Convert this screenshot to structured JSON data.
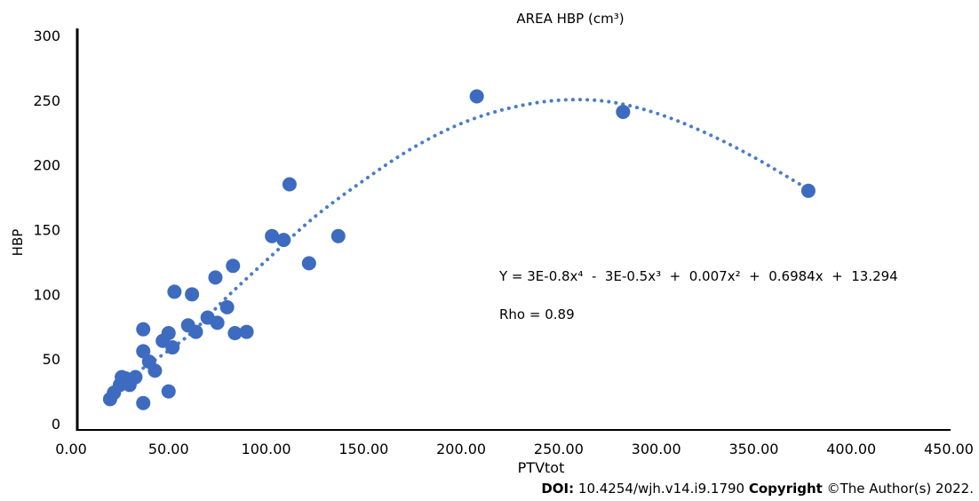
{
  "chart_data": {
    "type": "scatter",
    "title": "AREA HBP (cm³)",
    "xlabel": "PTVtot",
    "ylabel": "HBP",
    "xlim": [
      0,
      450
    ],
    "ylim": [
      0,
      300
    ],
    "x_tick_labels": [
      "0.00",
      "50.00",
      "100.00",
      "150.00",
      "200.00",
      "250.00",
      "300.00",
      "350.00",
      "400.00",
      "450.00"
    ],
    "y_tick_labels": [
      "0",
      "50",
      "100",
      "150",
      "200",
      "250",
      "300"
    ],
    "grid": false,
    "legend": "none",
    "points": [
      {
        "x": 20,
        "y": 19
      },
      {
        "x": 22,
        "y": 24
      },
      {
        "x": 25,
        "y": 30
      },
      {
        "x": 26,
        "y": 36
      },
      {
        "x": 28,
        "y": 35
      },
      {
        "x": 30,
        "y": 30
      },
      {
        "x": 33,
        "y": 36
      },
      {
        "x": 37,
        "y": 16
      },
      {
        "x": 37,
        "y": 56
      },
      {
        "x": 37,
        "y": 73
      },
      {
        "x": 40,
        "y": 48
      },
      {
        "x": 43,
        "y": 41
      },
      {
        "x": 47,
        "y": 64
      },
      {
        "x": 50,
        "y": 70
      },
      {
        "x": 50,
        "y": 25
      },
      {
        "x": 52,
        "y": 59
      },
      {
        "x": 53,
        "y": 102
      },
      {
        "x": 60,
        "y": 76
      },
      {
        "x": 62,
        "y": 100
      },
      {
        "x": 64,
        "y": 71
      },
      {
        "x": 70,
        "y": 82
      },
      {
        "x": 74,
        "y": 113
      },
      {
        "x": 75,
        "y": 78
      },
      {
        "x": 80,
        "y": 90
      },
      {
        "x": 83,
        "y": 122
      },
      {
        "x": 84,
        "y": 70
      },
      {
        "x": 90,
        "y": 71
      },
      {
        "x": 103,
        "y": 145
      },
      {
        "x": 109,
        "y": 142
      },
      {
        "x": 112,
        "y": 185
      },
      {
        "x": 122,
        "y": 124
      },
      {
        "x": 137,
        "y": 145
      },
      {
        "x": 208,
        "y": 253
      },
      {
        "x": 283,
        "y": 241
      },
      {
        "x": 378,
        "y": 180
      }
    ],
    "trendline": {
      "style": "dotted",
      "type": "polynomial",
      "x_range": [
        37,
        377
      ],
      "samples": [
        {
          "x": 37,
          "y": 43
        },
        {
          "x": 60,
          "y": 68
        },
        {
          "x": 80,
          "y": 98
        },
        {
          "x": 100,
          "y": 126
        },
        {
          "x": 125,
          "y": 160
        },
        {
          "x": 150,
          "y": 188
        },
        {
          "x": 175,
          "y": 213
        },
        {
          "x": 200,
          "y": 232
        },
        {
          "x": 225,
          "y": 244
        },
        {
          "x": 250,
          "y": 250
        },
        {
          "x": 275,
          "y": 249
        },
        {
          "x": 300,
          "y": 240
        },
        {
          "x": 325,
          "y": 225
        },
        {
          "x": 350,
          "y": 206
        },
        {
          "x": 377,
          "y": 182
        }
      ]
    },
    "equation": "Y = 3E-0.8x⁴  -  3E-0.5x³  +  0.007x²  +  0.6984x  +  13.294",
    "rho": "Rho = 0.89",
    "colors": {
      "point": "#3d6bbf",
      "trendline": "#4a7cc9",
      "axis": "#000000"
    }
  },
  "footer": {
    "doi_label": "DOI:",
    "doi_value": " 10.4254/wjh.v14.i9.1790 ",
    "copyright_label": "Copyright",
    "copyright_value": " ©The Author(s) 2022."
  }
}
